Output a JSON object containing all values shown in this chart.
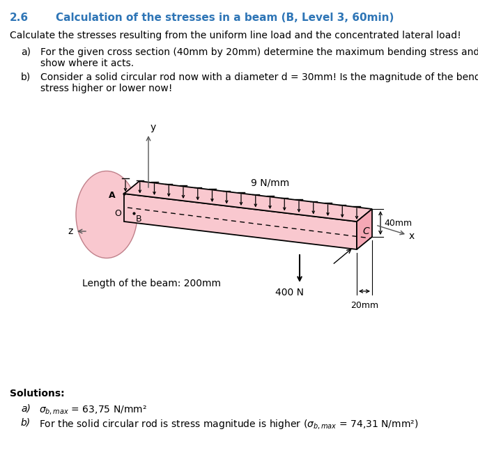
{
  "title_num": "2.6",
  "title_text": "Calculation of the stresses in a beam (B, Level 3, 60min)",
  "title_color": "#2E75B6",
  "intro_text": "Calculate the stresses resulting from the uniform line load and the concentrated lateral load!",
  "item_a_label": "a)",
  "item_a_line1": "For the given cross section (40mm by 20mm) determine the maximum bending stress and",
  "item_a_line2": "show where it acts.",
  "item_b_label": "b)",
  "item_b_line1": "Consider a solid circular rod now with a diameter d = 30mm! Is the magnitude of the bending",
  "item_b_line2": "stress higher or lower now!",
  "load_label": "9 N/mm",
  "force_label": "400 N",
  "length_label": "Length of the beam: 200mm",
  "dim_40": "40mm",
  "dim_20": "20mm",
  "beam_color": "#F9C8CF",
  "beam_color_dark": "#F5A8B5",
  "ellipse_color": "#F9C8CF",
  "bg_color": "#FFFFFF",
  "sol_header": "Solutions:",
  "sol_a_label": "a)",
  "sol_a_text": " = 63,75 N/mm²",
  "sol_b_label": "b)",
  "sol_b_text": "For the solid circular rod is stress magnitude is higher (",
  "sol_b_val": " = 74,31 N/mm²)"
}
